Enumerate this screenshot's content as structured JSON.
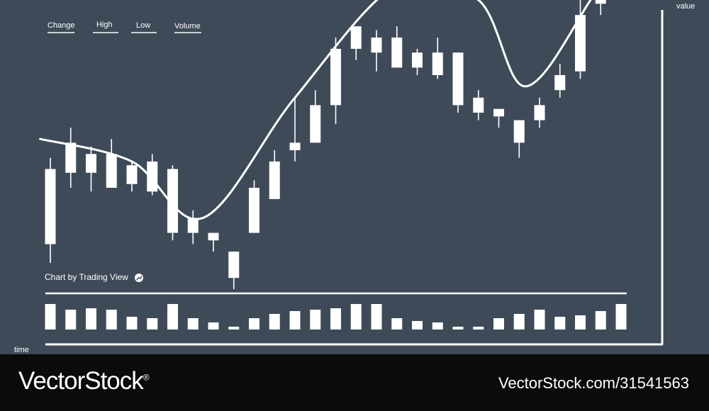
{
  "chart_data": {
    "type": "candlestick",
    "title": "",
    "xlabel": "time",
    "ylabel": "value",
    "legend": [
      "Change",
      "High",
      "Low",
      "Volume"
    ],
    "caption": "Chart by Trading View",
    "ylim": [
      0,
      100
    ],
    "candles": [
      {
        "open": 35,
        "close": 55,
        "high": 58,
        "low": 30
      },
      {
        "open": 54,
        "close": 62,
        "high": 66,
        "low": 50
      },
      {
        "open": 54,
        "close": 59,
        "high": 61,
        "low": 49
      },
      {
        "open": 59,
        "close": 50,
        "high": 63,
        "low": 50
      },
      {
        "open": 56,
        "close": 51,
        "high": 57,
        "low": 49
      },
      {
        "open": 57,
        "close": 49,
        "high": 59,
        "low": 48
      },
      {
        "open": 55,
        "close": 38,
        "high": 56,
        "low": 36
      },
      {
        "open": 38,
        "close": 42,
        "high": 44,
        "low": 35
      },
      {
        "open": 38,
        "close": 36,
        "high": 38,
        "low": 33
      },
      {
        "open": 33,
        "close": 26,
        "high": 33,
        "low": 23
      },
      {
        "open": 38,
        "close": 50,
        "high": 52,
        "low": 38
      },
      {
        "open": 47,
        "close": 57,
        "high": 60,
        "low": 47
      },
      {
        "open": 62,
        "close": 60,
        "high": 74,
        "low": 57
      },
      {
        "open": 62,
        "close": 72,
        "high": 76,
        "low": 62
      },
      {
        "open": 72,
        "close": 87,
        "high": 90,
        "low": 67
      },
      {
        "open": 87,
        "close": 93,
        "high": 93,
        "low": 84
      },
      {
        "open": 86,
        "close": 90,
        "high": 92,
        "low": 81
      },
      {
        "open": 90,
        "close": 82,
        "high": 93,
        "low": 82
      },
      {
        "open": 82,
        "close": 86,
        "high": 87,
        "low": 80
      },
      {
        "open": 86,
        "close": 80,
        "high": 90,
        "low": 79
      },
      {
        "open": 86,
        "close": 72,
        "high": 86,
        "low": 70
      },
      {
        "open": 70,
        "close": 74,
        "high": 76,
        "low": 68
      },
      {
        "open": 71,
        "close": 69,
        "high": 71,
        "low": 66
      },
      {
        "open": 68,
        "close": 62,
        "high": 68,
        "low": 58
      },
      {
        "open": 68,
        "close": 72,
        "high": 74,
        "low": 66
      },
      {
        "open": 76,
        "close": 80,
        "high": 83,
        "low": 74
      },
      {
        "open": 81,
        "close": 96,
        "high": 108,
        "low": 79
      },
      {
        "open": 99,
        "close": 101,
        "high": 101,
        "low": 96
      },
      {
        "open": 103,
        "close": 115,
        "high": 115,
        "low": 100
      }
    ],
    "volume": [
      9,
      7,
      7.5,
      7,
      4.5,
      4,
      9,
      4,
      2.5,
      1,
      4,
      5.5,
      6.5,
      7,
      7.5,
      9,
      9,
      4,
      3,
      2.5,
      1,
      1,
      4,
      5.5,
      7,
      4.5,
      5,
      6.5,
      9
    ],
    "volume_ylim": [
      0,
      10
    ],
    "trend": [
      [
        -0.5,
        63
      ],
      [
        4,
        57
      ],
      [
        7.5,
        42
      ],
      [
        12,
        74
      ],
      [
        17,
        104
      ],
      [
        21,
        100
      ],
      [
        23.3,
        77
      ],
      [
        26.5,
        100
      ],
      [
        28.5,
        119
      ]
    ]
  },
  "watermark": {
    "brand": "VectorStock",
    "registered": "®",
    "image_id": "VectorStock.com/31541563"
  }
}
